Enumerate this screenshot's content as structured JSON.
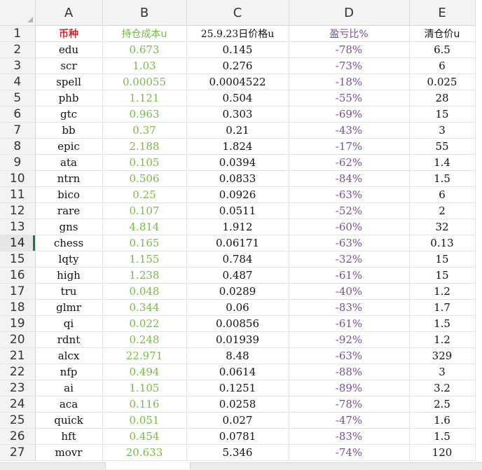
{
  "columns": [
    "A",
    "B",
    "C",
    "D",
    "E"
  ],
  "header_row": {
    "number": "1",
    "a": "币种",
    "b": "持仓成本u",
    "c": "25.9.23日价格u",
    "d": "盈亏比%",
    "e": "清仓价u"
  },
  "rows": [
    {
      "n": "2",
      "a": "edu",
      "b": "0.673",
      "c": "0.145",
      "d": "-78%",
      "e": "6.5"
    },
    {
      "n": "3",
      "a": "scr",
      "b": "1.03",
      "c": "0.276",
      "d": "-73%",
      "e": "6"
    },
    {
      "n": "4",
      "a": "spell",
      "b": "0.00055",
      "c": "0.0004522",
      "d": "-18%",
      "e": "0.025"
    },
    {
      "n": "5",
      "a": "phb",
      "b": "1.121",
      "c": "0.504",
      "d": "-55%",
      "e": "28"
    },
    {
      "n": "6",
      "a": "gtc",
      "b": "0.963",
      "c": "0.303",
      "d": "-69%",
      "e": "15"
    },
    {
      "n": "7",
      "a": "bb",
      "b": "0.37",
      "c": "0.21",
      "d": "-43%",
      "e": "3"
    },
    {
      "n": "8",
      "a": "epic",
      "b": "2.188",
      "c": "1.824",
      "d": "-17%",
      "e": "55"
    },
    {
      "n": "9",
      "a": "ata",
      "b": "0.105",
      "c": "0.0394",
      "d": "-62%",
      "e": "1.4"
    },
    {
      "n": "10",
      "a": "ntrn",
      "b": "0.506",
      "c": "0.0833",
      "d": "-84%",
      "e": "1.5"
    },
    {
      "n": "11",
      "a": "bico",
      "b": "0.25",
      "c": "0.0926",
      "d": "-63%",
      "e": "6"
    },
    {
      "n": "12",
      "a": "rare",
      "b": "0.107",
      "c": "0.0511",
      "d": "-52%",
      "e": "2"
    },
    {
      "n": "13",
      "a": "gns",
      "b": "4.814",
      "c": "1.912",
      "d": "-60%",
      "e": "32"
    },
    {
      "n": "14",
      "a": "chess",
      "b": "0.165",
      "c": "0.06171",
      "d": "-63%",
      "e": "0.13"
    },
    {
      "n": "15",
      "a": "lqty",
      "b": "1.155",
      "c": "0.784",
      "d": "-32%",
      "e": "15"
    },
    {
      "n": "16",
      "a": "high",
      "b": "1.238",
      "c": "0.487",
      "d": "-61%",
      "e": "15"
    },
    {
      "n": "17",
      "a": "tru",
      "b": "0.048",
      "c": "0.0289",
      "d": "-40%",
      "e": "1.2"
    },
    {
      "n": "18",
      "a": "glmr",
      "b": "0.344",
      "c": "0.06",
      "d": "-83%",
      "e": "1.7"
    },
    {
      "n": "19",
      "a": "qi",
      "b": "0.022",
      "c": "0.00856",
      "d": "-61%",
      "e": "1.5"
    },
    {
      "n": "20",
      "a": "rdnt",
      "b": "0.248",
      "c": "0.01939",
      "d": "-92%",
      "e": "1.2"
    },
    {
      "n": "21",
      "a": "alcx",
      "b": "22.971",
      "c": "8.48",
      "d": "-63%",
      "e": "329"
    },
    {
      "n": "22",
      "a": "nfp",
      "b": "0.494",
      "c": "0.0614",
      "d": "-88%",
      "e": "3"
    },
    {
      "n": "23",
      "a": "ai",
      "b": "1.105",
      "c": "0.1251",
      "d": "-89%",
      "e": "3.2"
    },
    {
      "n": "24",
      "a": "aca",
      "b": "0.116",
      "c": "0.0258",
      "d": "-78%",
      "e": "2.5"
    },
    {
      "n": "25",
      "a": "quick",
      "b": "0.051",
      "c": "0.027",
      "d": "-47%",
      "e": "1.6"
    },
    {
      "n": "26",
      "a": "hft",
      "b": "0.454",
      "c": "0.0781",
      "d": "-83%",
      "e": "1.5"
    },
    {
      "n": "27",
      "a": "movr",
      "b": "20.633",
      "c": "5.346",
      "d": "-74%",
      "e": "120"
    }
  ],
  "active_row": "14",
  "colors": {
    "header_red": "#d2262c",
    "cost_green": "#7bb84a",
    "pnl_purple": "#7a4f98",
    "active_row_marker": "#1f7a3d"
  }
}
